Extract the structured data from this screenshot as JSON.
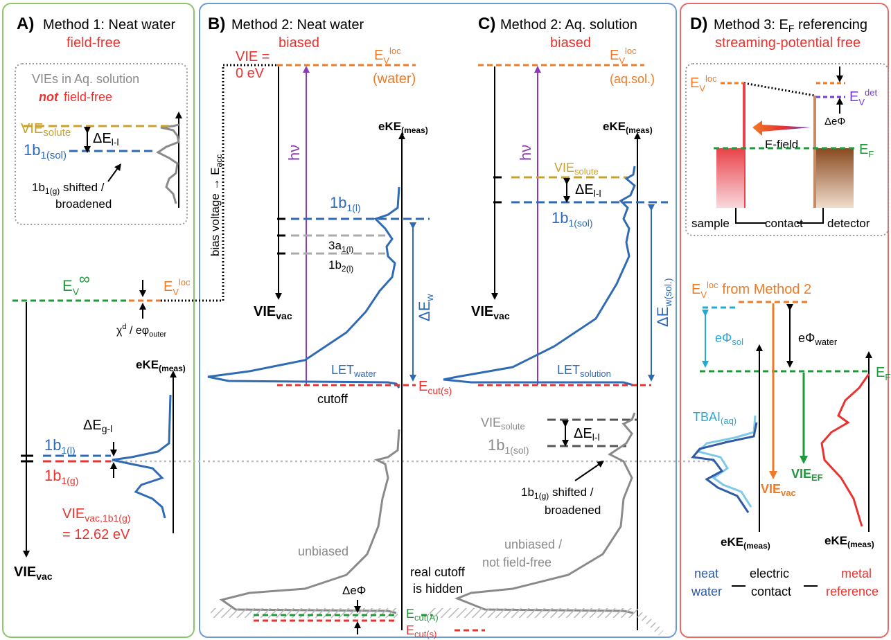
{
  "panels": {
    "A": {
      "letter": "A)",
      "title": "Method 1: Neat water",
      "subtitle": "field-free",
      "inset_title": "VIEs in Aq. solution",
      "inset_not": "not",
      "inset_ff": "field-free",
      "vie_solute": "VIE",
      "vie_solute_sub": "solute",
      "de_ll": "ΔE",
      "de_ll_sub": "l-l",
      "b1_sol": "1b",
      "b1_sol_sub": "1(sol)",
      "b1g_shift": "1b",
      "b1g_shift_sub": "1(g)",
      "b1g_shift_rest": " shifted /",
      "broadened": "broadened",
      "ev_inf": "E",
      "ev_inf_sub": "V",
      "ev_inf_sup": "∞",
      "ev_loc": "E",
      "ev_loc_sub": "V",
      "ev_loc_sup": "loc",
      "chi": "χ",
      "chi_sup": "d",
      "chi_rest": " / eφ",
      "chi_sub": "outer",
      "eke": "eKE",
      "eke_sub": "(meas)",
      "de_gl": "ΔE",
      "de_gl_sub": "g-l",
      "b1l": "1b",
      "b1l_sub": "1(l)",
      "b1g": "1b",
      "b1g_sub": "1(g)",
      "vie_vac": "VIE",
      "vie_vac_sub": "vac",
      "vie_val": "VIE",
      "vie_val_sub": "vac,1b1(g)",
      "vie_eq": "= 12.62 eV"
    },
    "B": {
      "letter": "B)",
      "title": "Method 2: Neat water",
      "subtitle": "biased",
      "vie0a": "VIE =",
      "vie0b": "0 eV",
      "ev": "E",
      "ev_sub": "V",
      "ev_sup": "loc",
      "ev_paren": "(water)",
      "hv": "hν",
      "bias": "bias voltage → E",
      "bias_sub": "acc",
      "eke": "eKE",
      "eke_sub": "(meas)",
      "b1l": "1b",
      "b1l_sub": "1(l)",
      "a3": "3a",
      "a3_sub": "1(l)",
      "b2": "1b",
      "b2_sub": "2(l)",
      "dew": "ΔE",
      "dew_sub": "w",
      "vie_vac": "VIE",
      "vie_vac_sub": "vac",
      "let": "LET",
      "let_sub": "water",
      "cutoff": "cutoff",
      "ecut_s": "E",
      "ecut_s_sub": "cut(s)",
      "unbiased": "unbiased",
      "real1": "real cutoff",
      "real2": "is hidden",
      "dephi": "ΔeΦ",
      "ecut_a": "E",
      "ecut_a_sub": "cut(A)",
      "ecut_s2": "E",
      "ecut_s2_sub": "cut(s)"
    },
    "C": {
      "letter": "C)",
      "title": "Method 2: Aq. solution",
      "subtitle": "biased",
      "ev": "E",
      "ev_sub": "V",
      "ev_sup": "loc",
      "ev_paren": "(aq.sol.)",
      "hv": "hν",
      "eke": "eKE",
      "eke_sub": "(meas)",
      "vie_solute": "VIE",
      "vie_solute_sub": "solute",
      "de_ll": "ΔE",
      "de_ll_sub": "l-l",
      "b1_sol": "1b",
      "b1_sol_sub": "1(sol)",
      "dews": "ΔE",
      "dews_sub": "w(sol.)",
      "vie_vac": "VIE",
      "vie_vac_sub": "vac",
      "let": "LET",
      "let_sub": "solution",
      "vie_solute2": "VIE",
      "vie_solute2_sub": "solute",
      "de_ll2": "ΔE",
      "de_ll2_sub": "l-l",
      "b1_sol2": "1b",
      "b1_sol2_sub": "1(sol)",
      "b1g": "1b",
      "b1g_sub": "1(g)",
      "b1g_rest": " shifted /",
      "broadened": "broadened",
      "unb1": "unbiased /",
      "unb2": "not field-free"
    },
    "D": {
      "letter": "D)",
      "title_pre": "Method 3: E",
      "title_sub": "F",
      "title_post": " referencing",
      "subtitle": "streaming-potential free",
      "ev": "E",
      "ev_sub": "V",
      "ev_sup": "loc",
      "ev_det": "E",
      "ev_det_sub": "V",
      "ev_det_sup": "det",
      "dephi": "ΔeΦ",
      "efield": "E-field",
      "ef": "E",
      "ef_sub": "F",
      "sample": "sample",
      "contact": "contact",
      "detector": "detector",
      "evm2": "E",
      "evm2_sub": "V",
      "evm2_sup": "loc",
      "evm2_rest": " from Method 2",
      "ephi_sol": "eΦ",
      "ephi_sol_sub": "sol",
      "ephi_water": "eΦ",
      "ephi_water_sub": "water",
      "ef2": "E",
      "ef2_sub": "F",
      "tbai": "TBAI",
      "tbai_sub": "(aq)",
      "vie_ef": "VIE",
      "vie_ef_sub": "EF",
      "vie_vac": "VIE",
      "vie_vac_sub": "vac",
      "eke1": "eKE",
      "eke1_sub": "(meas)",
      "eke2": "eKE",
      "eke2_sub": "(meas)",
      "neat1": "neat",
      "neat2": "water",
      "elec1": "electric",
      "elec2": "contact",
      "metal1": "metal",
      "metal2": "reference"
    }
  },
  "colors": {
    "red": "#e8332f",
    "blue": "#2f6ab5",
    "orange": "#f07a26",
    "gold": "#c9a22a",
    "green": "#1f9a3a",
    "gray": "#8a8a8a",
    "purple": "#8a3bb5",
    "cyan": "#22aad6",
    "border_green": "#8cc66a",
    "border_blue": "#6b9ad6",
    "border_red": "#e86a66"
  }
}
